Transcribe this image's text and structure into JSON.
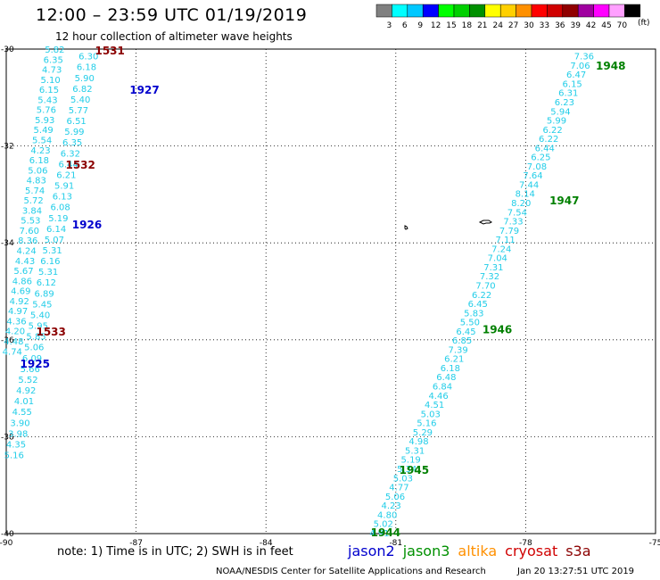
{
  "header": {
    "title": "12:00 – 23:59 UTC 01/19/2019",
    "subtitle": "12 hour collection of altimeter wave heights"
  },
  "legend": {
    "unit": "(ft)",
    "bins": [
      {
        "label": "3",
        "color": "#808080"
      },
      {
        "label": "6",
        "color": "#00ffff"
      },
      {
        "label": "9",
        "color": "#00c8ff"
      },
      {
        "label": "12",
        "color": "#0000ff"
      },
      {
        "label": "15",
        "color": "#00ff00"
      },
      {
        "label": "18",
        "color": "#00d000"
      },
      {
        "label": "21",
        "color": "#009000"
      },
      {
        "label": "24",
        "color": "#ffff00"
      },
      {
        "label": "27",
        "color": "#ffd000"
      },
      {
        "label": "30",
        "color": "#ff9000"
      },
      {
        "label": "33",
        "color": "#ff0000"
      },
      {
        "label": "36",
        "color": "#d00000"
      },
      {
        "label": "39",
        "color": "#900000"
      },
      {
        "label": "42",
        "color": "#a000a0"
      },
      {
        "label": "45",
        "color": "#ff00ff"
      },
      {
        "label": "70",
        "color": "#ffa0ff"
      },
      {
        "label": "",
        "color": "#000000"
      }
    ]
  },
  "map": {
    "lon_ticks": [
      "-90",
      "-87",
      "-84",
      "-81",
      "-78",
      "-75"
    ],
    "lat_ticks": [
      "-30",
      "-32",
      "-34",
      "-36",
      "-38",
      "-40"
    ]
  },
  "tracks": [
    {
      "name": "track-west-a",
      "color": "#22cde8",
      "start": [
        -88.88,
        -30.0
      ],
      "end": [
        -89.86,
        -36.23
      ],
      "values": [
        "5.82",
        "6.35",
        "4.73",
        "5.10",
        "6.15",
        "5.43",
        "5.76",
        "5.93",
        "5.49",
        "5.54",
        "4.23",
        "6.18",
        "5.06",
        "4.83",
        "5.74",
        "5.72",
        "3.84",
        "5.53",
        "7.60",
        "8.36",
        "4.24",
        "4.43",
        "5.67",
        "4.86",
        "4.69",
        "4.92",
        "4.97",
        "4.36",
        "4.20",
        "4.48",
        "4.74"
      ]
    },
    {
      "name": "track-west-b",
      "color": "#22cde8",
      "start": [
        -88.1,
        -30.14
      ],
      "end": [
        -89.82,
        -38.37
      ],
      "values": [
        "6.30",
        "6.18",
        "5.90",
        "6.82",
        "5.40",
        "5.77",
        "6.51",
        "5.99",
        "6.35",
        "6.32",
        "6.44",
        "6.21",
        "5.91",
        "6.13",
        "6.08",
        "5.19",
        "6.14",
        "5.07",
        "5.31",
        "6.16",
        "5.31",
        "6.12",
        "6.89",
        "5.45",
        "5.40",
        "5.95",
        "5.85",
        "5.06",
        "6.09",
        "5.66",
        "5.52",
        "4.92",
        "4.01",
        "4.55",
        "3.90",
        "3.98",
        "4.35",
        "5.16"
      ]
    },
    {
      "name": "track-east",
      "color": "#22cde8",
      "start": [
        -76.65,
        -30.14
      ],
      "end": [
        -81.38,
        -39.98
      ],
      "values": [
        "7.36",
        "7.06",
        "6.47",
        "6.15",
        "6.31",
        "6.23",
        "5.94",
        "5.99",
        "6.22",
        "6.22",
        "6.44",
        "6.25",
        "7.08",
        "7.64",
        "7.44",
        "8.14",
        "8.20",
        "7.54",
        "7.33",
        "7.79",
        "7.11",
        "7.24",
        "7.04",
        "7.31",
        "7.32",
        "7.70",
        "6.22",
        "6.45",
        "5.83",
        "5.50",
        "6.45",
        "6.85",
        "7.39",
        "6.21",
        "6.18",
        "6.48",
        "6.84",
        "4.46",
        "4.51",
        "5.03",
        "5.16",
        "5.29",
        "4.98",
        "5.31",
        "5.19",
        "5.34",
        "5.03",
        "4.77",
        "5.06",
        "4.23",
        "4.80",
        "5.02",
        "4.91"
      ]
    }
  ],
  "time_labels": [
    {
      "text": "1531",
      "color": "#8b0000",
      "lon": -87.95,
      "lat": -30.04
    },
    {
      "text": "1927",
      "color": "#0000cd",
      "lon": -87.15,
      "lat": -30.85
    },
    {
      "text": "1532",
      "color": "#8b0000",
      "lon": -88.63,
      "lat": -32.39
    },
    {
      "text": "1926",
      "color": "#0000cd",
      "lon": -88.48,
      "lat": -33.63
    },
    {
      "text": "1533",
      "color": "#8b0000",
      "lon": -89.31,
      "lat": -35.84
    },
    {
      "text": "1925",
      "color": "#0000cd",
      "lon": -89.68,
      "lat": -36.5
    },
    {
      "text": "1948",
      "color": "#008000",
      "lon": -76.38,
      "lat": -30.35
    },
    {
      "text": "1947",
      "color": "#008000",
      "lon": -77.45,
      "lat": -33.13
    },
    {
      "text": "1946",
      "color": "#008000",
      "lon": -79.0,
      "lat": -35.79
    },
    {
      "text": "1945",
      "color": "#008000",
      "lon": -80.92,
      "lat": -38.69
    },
    {
      "text": "1944",
      "color": "#008000",
      "lon": -81.58,
      "lat": -39.98
    }
  ],
  "footer": {
    "note": "note:  1) Time is in UTC;  2) SWH is in feet",
    "satellites": [
      {
        "name": "jason2",
        "color": "#0000cd"
      },
      {
        "name": "jason3",
        "color": "#009000"
      },
      {
        "name": "altika",
        "color": "#ff9000"
      },
      {
        "name": "cryosat",
        "color": "#d00000"
      },
      {
        "name": "s3a",
        "color": "#8b0000"
      }
    ],
    "credit": "NOAA/NESDIS Center for Satellite Applications and Research",
    "timestamp": "Jan 20 13:27:51 UTC 2019"
  }
}
